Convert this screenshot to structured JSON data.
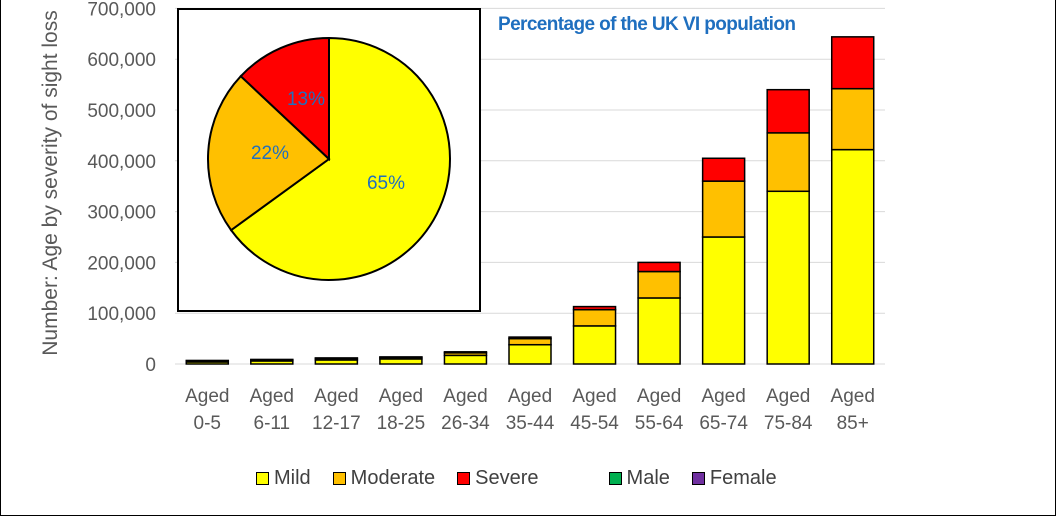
{
  "chart_data": {
    "type": "bar",
    "stacked": true,
    "ylabel": "Number: Age by severity of sight loss",
    "ylim": [
      0,
      700000
    ],
    "yticks": [
      "0",
      "100,000",
      "200,000",
      "300,000",
      "400,000",
      "500,000",
      "600,000",
      "700,000"
    ],
    "categories": [
      [
        "Aged",
        "0-5"
      ],
      [
        "Aged",
        "6-11"
      ],
      [
        "Aged",
        "12-17"
      ],
      [
        "Aged",
        "18-25"
      ],
      [
        "Aged",
        "26-34"
      ],
      [
        "Aged",
        "35-44"
      ],
      [
        "Aged",
        "45-54"
      ],
      [
        "Aged",
        "55-64"
      ],
      [
        "Aged",
        "65-74"
      ],
      [
        "Aged",
        "75-84"
      ],
      [
        "Aged",
        "85+"
      ]
    ],
    "series": [
      {
        "name": "Mild",
        "color": "#FFFF00",
        "values": [
          4000,
          6000,
          8000,
          10000,
          17000,
          38000,
          75000,
          130000,
          250000,
          340000,
          422000
        ]
      },
      {
        "name": "Moderate",
        "color": "#FFC000",
        "values": [
          2000,
          2000,
          3000,
          3000,
          5000,
          12000,
          32000,
          52000,
          110000,
          115000,
          120000
        ]
      },
      {
        "name": "Severe",
        "color": "#FF0000",
        "values": [
          1000,
          1000,
          1000,
          1000,
          2000,
          3000,
          6000,
          18000,
          45000,
          85000,
          102000
        ]
      }
    ],
    "extra_legend": [
      {
        "name": "Male",
        "color": "#00B050"
      },
      {
        "name": "Female",
        "color": "#7030A0"
      }
    ],
    "inset_pie": {
      "title": "Percentage of the UK VI population",
      "slices": [
        {
          "label": "Mild",
          "value": 65,
          "text": "65%",
          "color": "#FFFF00"
        },
        {
          "label": "Moderate",
          "value": 22,
          "text": "22%",
          "color": "#FFC000"
        },
        {
          "label": "Severe",
          "value": 13,
          "text": "13%",
          "color": "#FF0000"
        }
      ],
      "label_color": "#1F6FBF",
      "title_color": "#1F6FBF"
    },
    "grid": true
  }
}
